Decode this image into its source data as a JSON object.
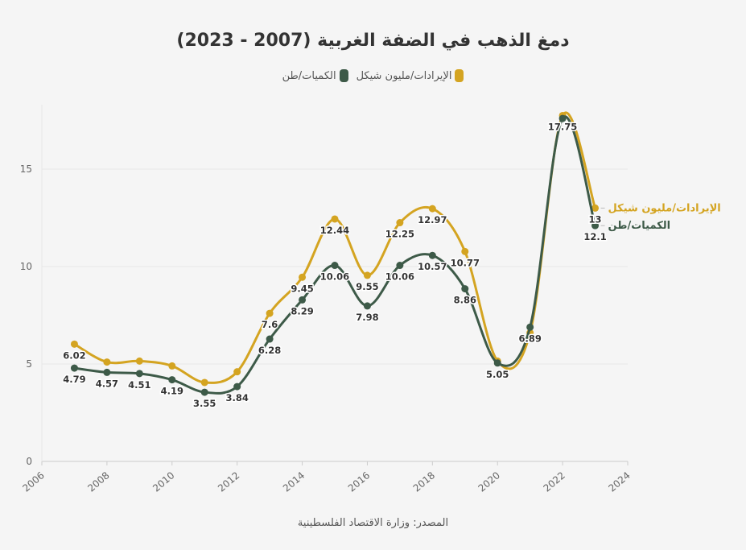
{
  "chart_data": {
    "type": "line",
    "title": "دمغ الذهب في الضفة الغربية (2007 - 2023)",
    "source": "المصدر: وزارة الاقتصاد الفلسطينية",
    "x": [
      2007,
      2008,
      2009,
      2010,
      2011,
      2012,
      2013,
      2014,
      2015,
      2016,
      2017,
      2018,
      2019,
      2020,
      2021,
      2022,
      2023
    ],
    "xlim": [
      2006,
      2024
    ],
    "ylim": [
      0,
      18
    ],
    "xticks": [
      2006,
      2008,
      2010,
      2012,
      2014,
      2016,
      2018,
      2020,
      2022,
      2024
    ],
    "yticks": [
      0,
      5,
      10,
      15
    ],
    "grid": true,
    "legend_position": "top",
    "series": [
      {
        "name": "الإيرادات/مليون شيكل",
        "color": "#d4a421",
        "values": [
          6.02,
          5.1,
          5.15,
          4.9,
          4.05,
          4.6,
          7.6,
          9.45,
          12.44,
          9.55,
          12.25,
          12.97,
          10.77,
          5.15,
          6.6,
          17.75,
          13
        ],
        "labels": [
          "6.02",
          null,
          null,
          null,
          null,
          null,
          "7.6",
          "9.45",
          "12.44",
          "9.55",
          "12.25",
          "12.97",
          "10.77",
          null,
          null,
          "17.75",
          "13"
        ]
      },
      {
        "name": "الكميات/طن",
        "color": "#3d5a48",
        "values": [
          4.79,
          4.57,
          4.51,
          4.19,
          3.55,
          3.84,
          6.28,
          8.29,
          10.06,
          7.98,
          10.06,
          10.57,
          8.86,
          5.05,
          6.89,
          17.6,
          12.1
        ],
        "labels": [
          "4.79",
          "4.57",
          "4.51",
          "4.19",
          "3.55",
          "3.84",
          "6.28",
          "8.29",
          "10.06",
          "7.98",
          "10.06",
          "10.57",
          "8.86",
          "5.05",
          "6.89",
          null,
          "12.1"
        ]
      }
    ]
  }
}
